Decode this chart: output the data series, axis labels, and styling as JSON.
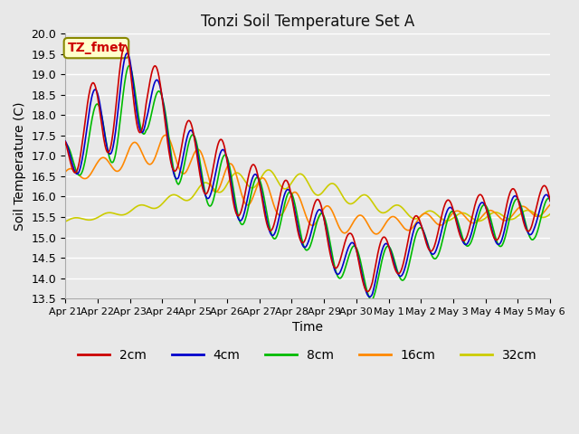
{
  "title": "Tonzi Soil Temperature Set A",
  "xlabel": "Time",
  "ylabel": "Soil Temperature (C)",
  "ylim": [
    13.5,
    20.0
  ],
  "yticks": [
    13.5,
    14.0,
    14.5,
    15.0,
    15.5,
    16.0,
    16.5,
    17.0,
    17.5,
    18.0,
    18.5,
    19.0,
    19.5,
    20.0
  ],
  "x_labels": [
    "Apr 21",
    "Apr 22",
    "Apr 23",
    "Apr 24",
    "Apr 25",
    "Apr 26",
    "Apr 27",
    "Apr 28",
    "Apr 29",
    "Apr 30",
    "May 1",
    "May 2",
    "May 3",
    "May 4",
    "May 5",
    "May 6"
  ],
  "colors": {
    "2cm": "#cc0000",
    "4cm": "#0000cc",
    "8cm": "#00bb00",
    "16cm": "#ff8800",
    "32cm": "#cccc00"
  },
  "annotation_text": "TZ_fmet",
  "annotation_color": "#cc0000",
  "annotation_bg": "#ffffcc",
  "annotation_border": "#888800",
  "fig_bg": "#e8e8e8",
  "plot_bg": "#e8e8e8",
  "grid_color": "#ffffff"
}
